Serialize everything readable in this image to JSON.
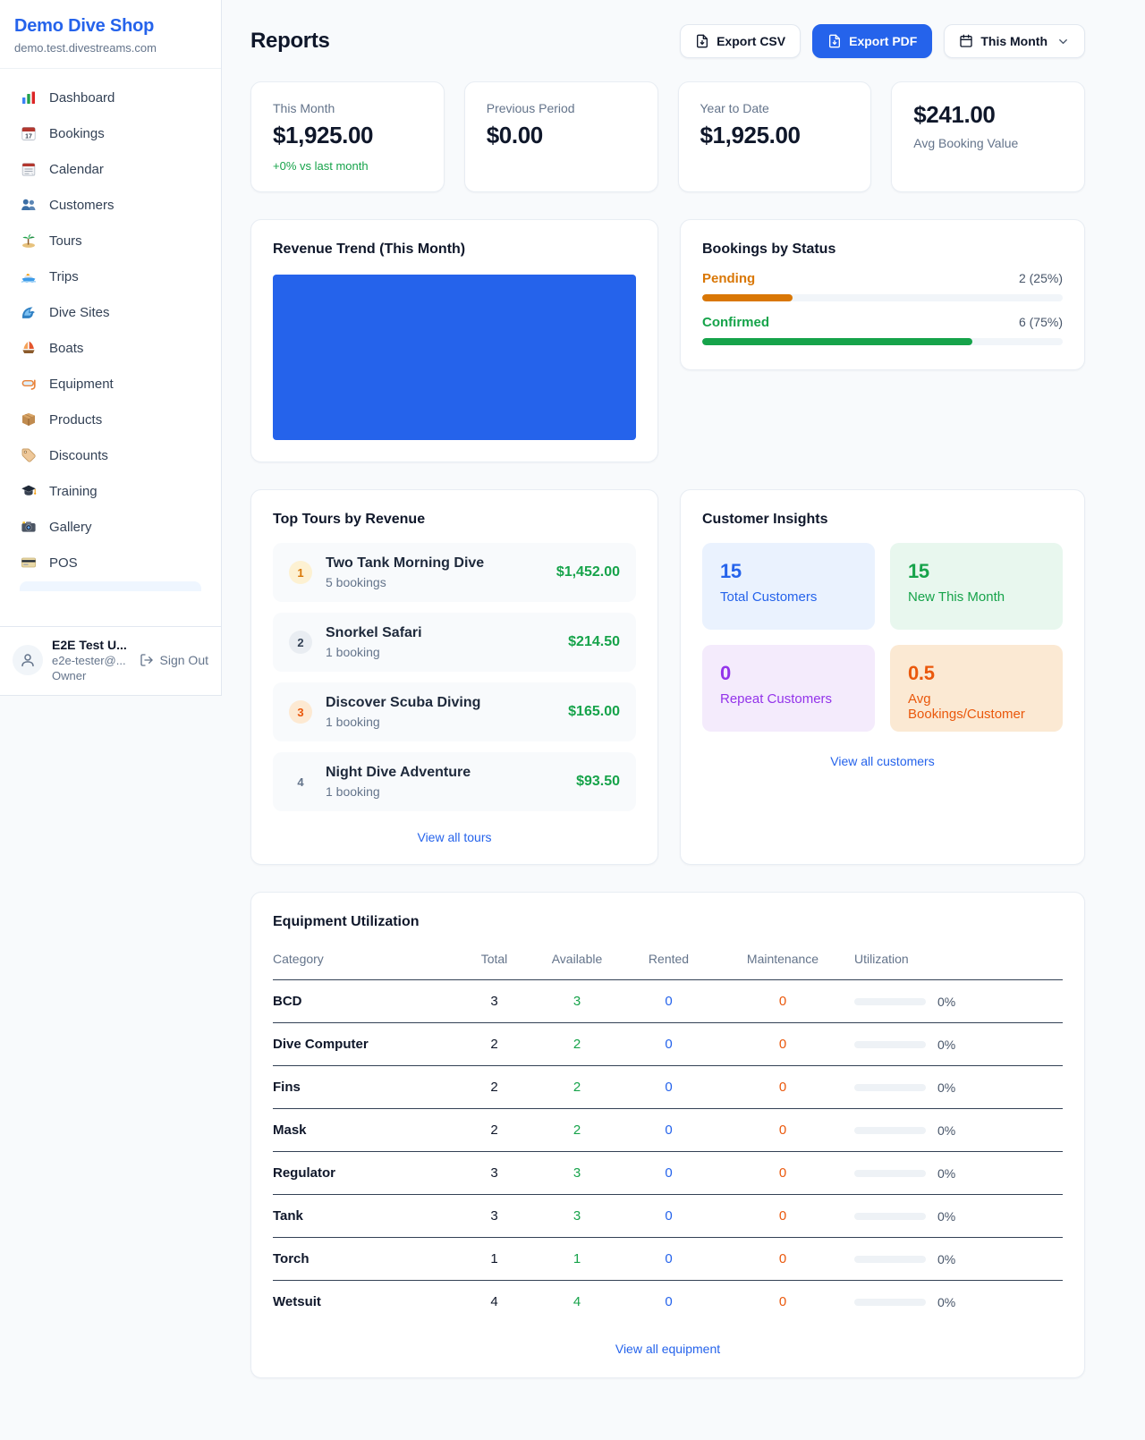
{
  "colors": {
    "accent_blue": "#2563eb",
    "green": "#16a34a",
    "amber": "#d97706",
    "orange": "#ea580c",
    "purple": "#9333ea"
  },
  "sidebar": {
    "shop_name": "Demo Dive Shop",
    "domain": "demo.test.divestreams.com",
    "items": [
      {
        "label": "Dashboard",
        "icon": "bar-chart"
      },
      {
        "label": "Bookings",
        "icon": "calendar-date"
      },
      {
        "label": "Calendar",
        "icon": "notepad-calendar"
      },
      {
        "label": "Customers",
        "icon": "people"
      },
      {
        "label": "Tours",
        "icon": "desert-island"
      },
      {
        "label": "Trips",
        "icon": "speedboat"
      },
      {
        "label": "Dive Sites",
        "icon": "water-wave"
      },
      {
        "label": "Boats",
        "icon": "sailboat"
      },
      {
        "label": "Equipment",
        "icon": "diving-mask"
      },
      {
        "label": "Products",
        "icon": "package-box"
      },
      {
        "label": "Discounts",
        "icon": "label-tag"
      },
      {
        "label": "Training",
        "icon": "graduation-cap"
      },
      {
        "label": "Gallery",
        "icon": "camera"
      },
      {
        "label": "POS",
        "icon": "credit-card"
      }
    ],
    "user": {
      "name": "E2E Test U...",
      "email": "e2e-tester@...",
      "role": "Owner",
      "sign_out_label": "Sign Out"
    }
  },
  "header": {
    "title": "Reports",
    "export_csv_label": "Export CSV",
    "export_pdf_label": "Export PDF",
    "period_label": "This Month"
  },
  "stats": [
    {
      "label": "This Month",
      "value": "$1,925.00",
      "sub": "+0% vs last month"
    },
    {
      "label": "Previous Period",
      "value": "$0.00"
    },
    {
      "label": "Year to Date",
      "value": "$1,925.00"
    },
    {
      "label": "Avg Booking Value",
      "value": "$241.00"
    }
  ],
  "revenue_trend": {
    "title": "Revenue Trend (This Month)"
  },
  "bookings_by_status": {
    "title": "Bookings by Status",
    "items": [
      {
        "label": "Pending",
        "value_text": "2 (25%)",
        "pct": 25
      },
      {
        "label": "Confirmed",
        "value_text": "6 (75%)",
        "pct": 75
      }
    ]
  },
  "top_tours": {
    "title": "Top Tours by Revenue",
    "rows": [
      {
        "rank": "1",
        "name": "Two Tank Morning Dive",
        "bookings": "5 bookings",
        "amount": "$1,452.00"
      },
      {
        "rank": "2",
        "name": "Snorkel Safari",
        "bookings": "1 booking",
        "amount": "$214.50"
      },
      {
        "rank": "3",
        "name": "Discover Scuba Diving",
        "bookings": "1 booking",
        "amount": "$165.00"
      },
      {
        "rank": "4",
        "name": "Night Dive Adventure",
        "bookings": "1 booking",
        "amount": "$93.50"
      }
    ],
    "view_all": "View all tours"
  },
  "customer_insights": {
    "title": "Customer Insights",
    "tiles": [
      {
        "value": "15",
        "label": "Total Customers"
      },
      {
        "value": "15",
        "label": "New This Month"
      },
      {
        "value": "0",
        "label": "Repeat Customers"
      },
      {
        "value": "0.5",
        "label": "Avg Bookings/Customer"
      }
    ],
    "view_all": "View all customers"
  },
  "equipment": {
    "title": "Equipment Utilization",
    "columns": [
      "Category",
      "Total",
      "Available",
      "Rented",
      "Maintenance",
      "Utilization"
    ],
    "rows": [
      {
        "category": "BCD",
        "total": "3",
        "available": "3",
        "rented": "0",
        "maintenance": "0",
        "utilization_pct": 0,
        "utilization": "0%"
      },
      {
        "category": "Dive Computer",
        "total": "2",
        "available": "2",
        "rented": "0",
        "maintenance": "0",
        "utilization_pct": 0,
        "utilization": "0%"
      },
      {
        "category": "Fins",
        "total": "2",
        "available": "2",
        "rented": "0",
        "maintenance": "0",
        "utilization_pct": 0,
        "utilization": "0%"
      },
      {
        "category": "Mask",
        "total": "2",
        "available": "2",
        "rented": "0",
        "maintenance": "0",
        "utilization_pct": 0,
        "utilization": "0%"
      },
      {
        "category": "Regulator",
        "total": "3",
        "available": "3",
        "rented": "0",
        "maintenance": "0",
        "utilization_pct": 0,
        "utilization": "0%"
      },
      {
        "category": "Tank",
        "total": "3",
        "available": "3",
        "rented": "0",
        "maintenance": "0",
        "utilization_pct": 0,
        "utilization": "0%"
      },
      {
        "category": "Torch",
        "total": "1",
        "available": "1",
        "rented": "0",
        "maintenance": "0",
        "utilization_pct": 0,
        "utilization": "0%"
      },
      {
        "category": "Wetsuit",
        "total": "4",
        "available": "4",
        "rented": "0",
        "maintenance": "0",
        "utilization_pct": 0,
        "utilization": "0%"
      }
    ],
    "view_all": "View all equipment"
  }
}
